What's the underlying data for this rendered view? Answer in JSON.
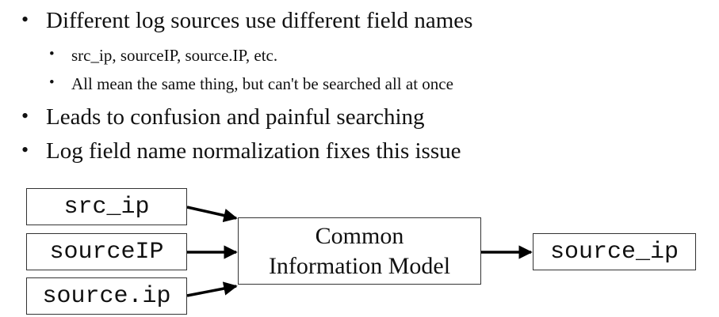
{
  "bullets": [
    {
      "text": "Different log sources use different field names",
      "sub": [
        "src_ip, sourceIP, source.IP, etc.",
        "All mean the same thing, but can't be searched all at once"
      ]
    },
    {
      "text": "Leads to confusion and painful searching"
    },
    {
      "text": "Log field name normalization fixes this issue"
    }
  ],
  "bullet_glyph": "•",
  "diagram": {
    "inputs": [
      "src_ip",
      "sourceIP",
      "source.ip"
    ],
    "center_line1": "Common",
    "center_line2": "Information Model",
    "output": "source_ip"
  }
}
